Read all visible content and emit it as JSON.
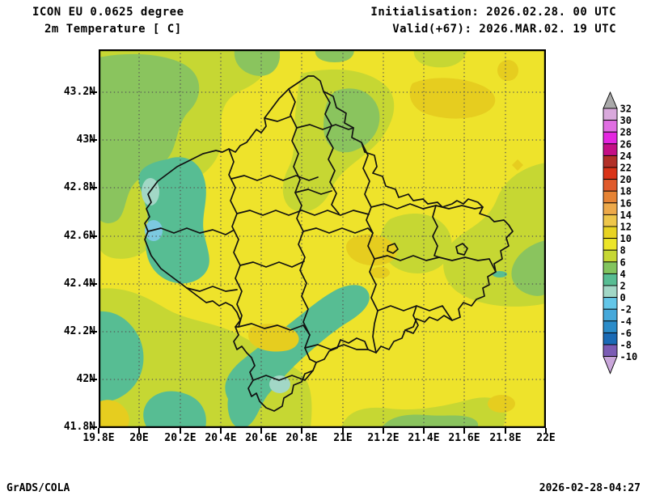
{
  "header": {
    "model_line": "ICON EU 0.0625 degree",
    "variable_line": "2m Temperature [ C]",
    "init_line": "Initialisation: 2026.02.28. 00 UTC",
    "valid_line": "Valid(+67): 2026.MAR.02. 19 UTC"
  },
  "axes": {
    "lat_labels": [
      "43.2N",
      "43N",
      "42.8N",
      "42.6N",
      "42.4N",
      "42.2N",
      "42N",
      "41.8N"
    ],
    "lon_labels": [
      "19.8E",
      "20E",
      "20.2E",
      "20.4E",
      "20.6E",
      "20.8E",
      "21E",
      "21.2E",
      "21.4E",
      "21.6E",
      "21.8E",
      "22E"
    ]
  },
  "colorbar": {
    "tick_labels": [
      32,
      30,
      28,
      26,
      24,
      22,
      20,
      18,
      16,
      14,
      12,
      10,
      8,
      6,
      4,
      2,
      0,
      -2,
      -4,
      -6,
      -8,
      -10
    ],
    "segment_colors_top_to_bottom": [
      "#d9a9dc",
      "#e06ee2",
      "#e426e0",
      "#c40f86",
      "#b23028",
      "#da3418",
      "#e05a2b",
      "#e68334",
      "#eda94a",
      "#eec64a",
      "#e8d322",
      "#ece528",
      "#c6d733",
      "#82c45e",
      "#57bd93",
      "#a2d7c6",
      "#63c6e8",
      "#45a8da",
      "#2b8cc9",
      "#1a6ab5",
      "#7b5cb4"
    ],
    "above_max_color": "#a9a9a9",
    "below_min_color": "#c9a6da"
  },
  "palette": {
    "p8": "#eee32b",
    "p10": "#e6cd1f",
    "p6": "#c6d733",
    "p4": "#8ac45e",
    "p2": "#57bd93",
    "p0": "#a2d7c6",
    "pm2": "#7cc9e0",
    "border": "#111111",
    "grid": "#555555"
  },
  "footer": {
    "left": "GrADS/COLA",
    "right": "2026-02-28-04:27"
  }
}
